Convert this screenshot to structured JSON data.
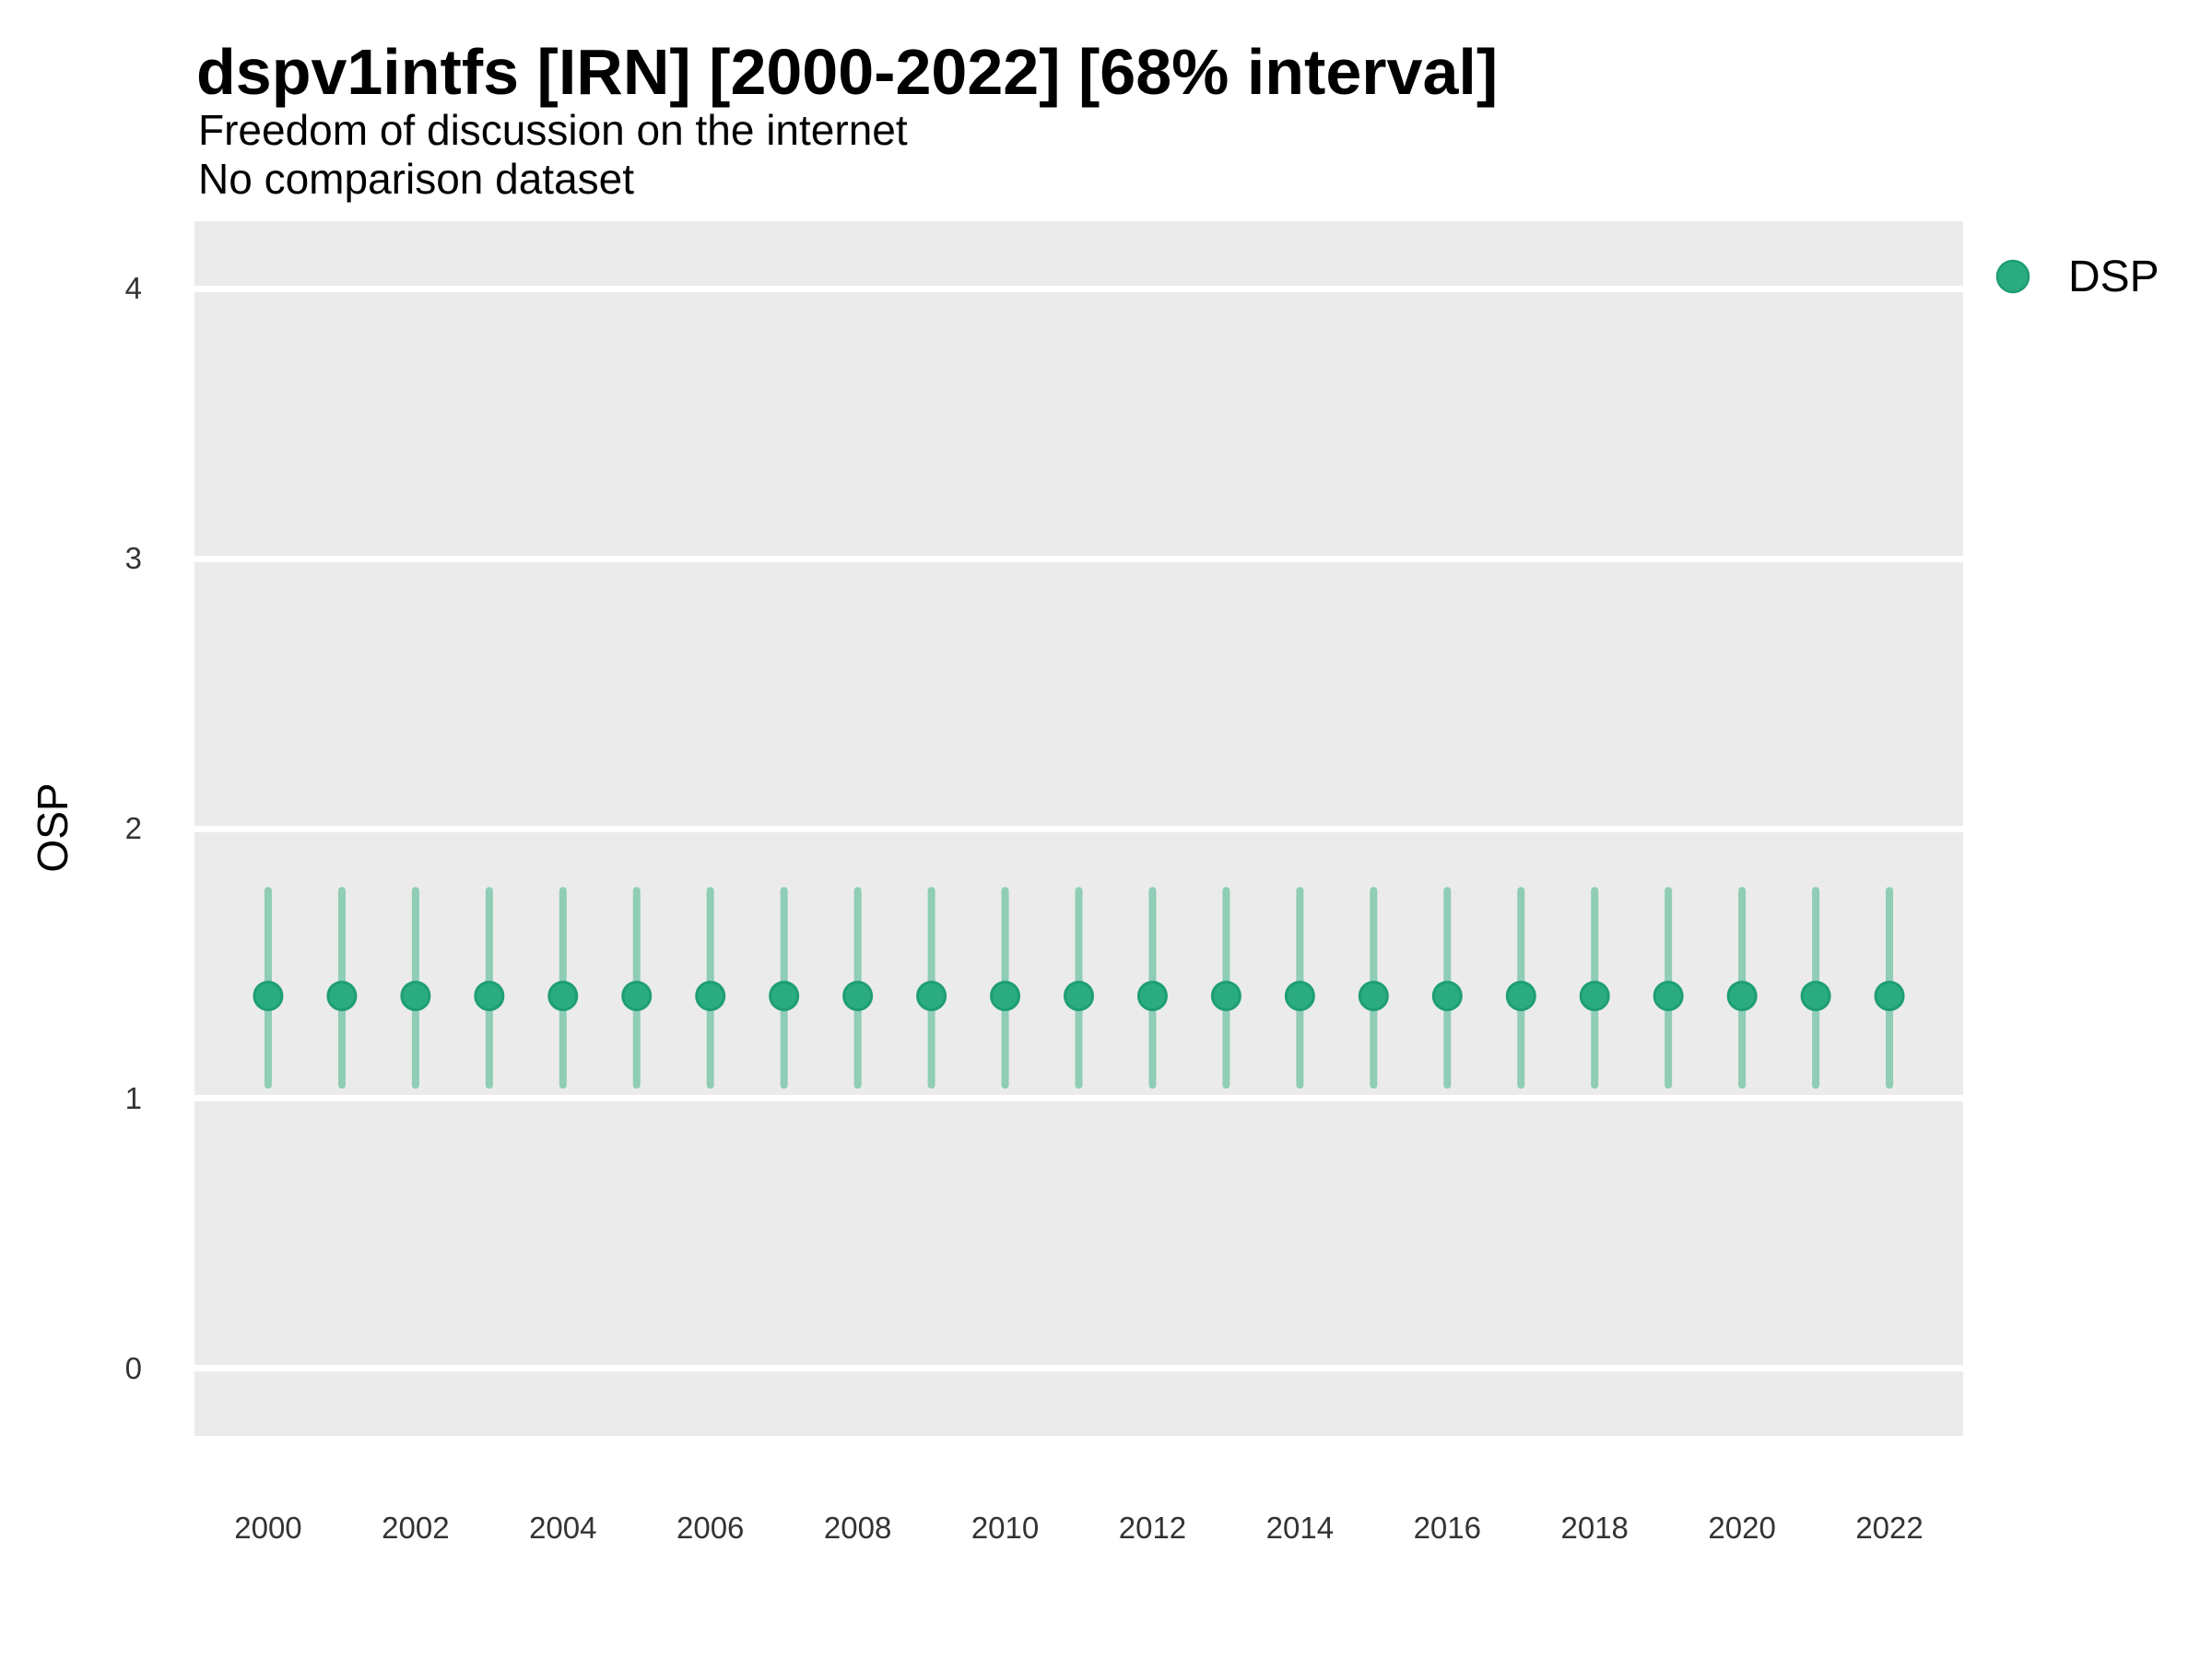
{
  "header": {
    "title": "dspv1intfs [IRN] [2000-2022] [68% interval]",
    "subtitle_line1": "Freedom of discussion on the internet",
    "subtitle_line2": "No comparison dataset"
  },
  "axes": {
    "y_label": "OSP"
  },
  "legend": {
    "position": "right",
    "items": [
      {
        "label": "DSP",
        "marker": "circle",
        "color": "#2BAB80"
      }
    ]
  },
  "colors": {
    "panel_background": "#EBEBEB",
    "gridline": "#FFFFFF",
    "point_fill": "#2BAB80",
    "point_stroke": "#1E9E73",
    "interval_line": "#8FCDB5",
    "tick_text": "#333333"
  },
  "chart_data": {
    "type": "scatter",
    "title": "dspv1intfs [IRN] [2000-2022] [68% interval]",
    "subtitle": [
      "Freedom of discussion on the internet",
      "No comparison dataset"
    ],
    "xlabel": "",
    "ylabel": "OSP",
    "interval": "68%",
    "xlim": [
      1999,
      2023
    ],
    "ylim": [
      -0.25,
      4.25
    ],
    "yticks": [
      0,
      1,
      2,
      3,
      4
    ],
    "xticks": [
      2000,
      2002,
      2004,
      2006,
      2008,
      2010,
      2012,
      2014,
      2016,
      2018,
      2020,
      2022
    ],
    "grid": "horizontal-major-only",
    "legend_position": "right",
    "series": [
      {
        "name": "DSP",
        "x": [
          2000,
          2001,
          2002,
          2003,
          2004,
          2005,
          2006,
          2007,
          2008,
          2009,
          2010,
          2011,
          2012,
          2013,
          2014,
          2015,
          2016,
          2017,
          2018,
          2019,
          2020,
          2021,
          2022
        ],
        "y": [
          1.38,
          1.38,
          1.38,
          1.38,
          1.38,
          1.38,
          1.38,
          1.38,
          1.38,
          1.38,
          1.38,
          1.38,
          1.38,
          1.38,
          1.38,
          1.38,
          1.38,
          1.38,
          1.38,
          1.38,
          1.38,
          1.38,
          1.38
        ],
        "y_low": [
          1.05,
          1.05,
          1.05,
          1.05,
          1.05,
          1.05,
          1.05,
          1.05,
          1.05,
          1.05,
          1.05,
          1.05,
          1.05,
          1.05,
          1.05,
          1.05,
          1.05,
          1.05,
          1.05,
          1.05,
          1.05,
          1.05,
          1.05
        ],
        "y_high": [
          1.77,
          1.77,
          1.77,
          1.77,
          1.77,
          1.77,
          1.77,
          1.77,
          1.77,
          1.77,
          1.77,
          1.77,
          1.77,
          1.77,
          1.77,
          1.77,
          1.77,
          1.77,
          1.77,
          1.77,
          1.77,
          1.77,
          1.77
        ]
      }
    ]
  }
}
